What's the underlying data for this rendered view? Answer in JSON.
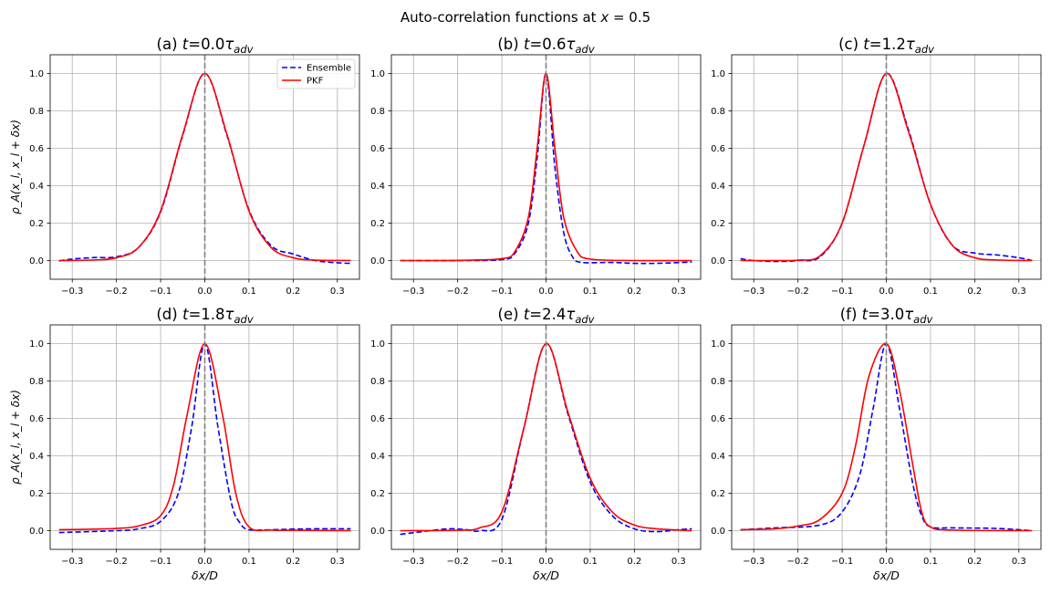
{
  "figure": {
    "suptitle_prefix": "Auto-correlation functions at ",
    "suptitle_math": "x",
    "suptitle_suffix": " = 0.5"
  },
  "legend": {
    "ensemble_label": "Ensemble",
    "pkf_label": "PKF",
    "placement": "upper-right of panel (a)"
  },
  "colors": {
    "ensemble": "#0000ff",
    "pkf": "#ff0000",
    "vline": "#808080",
    "grid": "#b0b0b0"
  },
  "chart_data": [
    {
      "type": "line",
      "panel": "(a)",
      "title_prefix": "(a) ",
      "time": "0.0",
      "xlim": [
        -0.35,
        0.35
      ],
      "ylim": [
        -0.1,
        1.1
      ],
      "xticks": [
        -0.3,
        -0.2,
        -0.1,
        0.0,
        0.1,
        0.2,
        0.3
      ],
      "yticks": [
        0.0,
        0.2,
        0.4,
        0.6,
        0.8,
        1.0
      ],
      "grid": true,
      "vline_x": 0.0,
      "ylabel": "ρ_A(x_l, x_l + δx)",
      "xlabel": "",
      "series": [
        {
          "name": "Ensemble",
          "style": "dashed",
          "points": [
            [
              -0.33,
              -0.002
            ],
            [
              -0.3,
              0.008
            ],
            [
              -0.25,
              0.016
            ],
            [
              -0.2,
              0.02
            ],
            [
              -0.15,
              0.07
            ],
            [
              -0.1,
              0.26
            ],
            [
              -0.05,
              0.67
            ],
            [
              0.0,
              1.0
            ],
            [
              0.05,
              0.67
            ],
            [
              0.1,
              0.27
            ],
            [
              0.15,
              0.08
            ],
            [
              0.2,
              0.035
            ],
            [
              0.25,
              0.0
            ],
            [
              0.3,
              -0.012
            ],
            [
              0.33,
              -0.015
            ]
          ]
        },
        {
          "name": "PKF",
          "style": "solid",
          "points": [
            [
              -0.33,
              0.0
            ],
            [
              -0.25,
              0.003
            ],
            [
              -0.2,
              0.015
            ],
            [
              -0.15,
              0.07
            ],
            [
              -0.1,
              0.265
            ],
            [
              -0.05,
              0.675
            ],
            [
              0.0,
              1.0
            ],
            [
              0.05,
              0.675
            ],
            [
              0.1,
              0.265
            ],
            [
              0.15,
              0.07
            ],
            [
              0.2,
              0.015
            ],
            [
              0.25,
              0.002
            ],
            [
              0.33,
              0.0
            ]
          ]
        }
      ]
    },
    {
      "type": "line",
      "panel": "(b)",
      "title_prefix": "(b) ",
      "time": "0.6",
      "xlim": [
        -0.35,
        0.35
      ],
      "ylim": [
        -0.1,
        1.1
      ],
      "xticks": [
        -0.3,
        -0.2,
        -0.1,
        0.0,
        0.1,
        0.2,
        0.3
      ],
      "yticks": [
        0.0,
        0.2,
        0.4,
        0.6,
        0.8,
        1.0
      ],
      "grid": true,
      "vline_x": 0.0,
      "ylabel": "",
      "xlabel": "",
      "series": [
        {
          "name": "Ensemble",
          "style": "dashed",
          "points": [
            [
              -0.33,
              0.0
            ],
            [
              -0.2,
              0.0
            ],
            [
              -0.1,
              0.005
            ],
            [
              -0.07,
              0.04
            ],
            [
              -0.04,
              0.2
            ],
            [
              -0.02,
              0.55
            ],
            [
              0.0,
              1.0
            ],
            [
              0.02,
              0.5
            ],
            [
              0.04,
              0.15
            ],
            [
              0.06,
              0.02
            ],
            [
              0.08,
              -0.01
            ],
            [
              0.15,
              -0.01
            ],
            [
              0.2,
              -0.015
            ],
            [
              0.25,
              -0.015
            ],
            [
              0.33,
              -0.008
            ]
          ]
        },
        {
          "name": "PKF",
          "style": "solid",
          "points": [
            [
              -0.33,
              0.0
            ],
            [
              -0.2,
              0.001
            ],
            [
              -0.1,
              0.01
            ],
            [
              -0.07,
              0.05
            ],
            [
              -0.04,
              0.23
            ],
            [
              -0.02,
              0.6
            ],
            [
              0.0,
              1.0
            ],
            [
              0.02,
              0.6
            ],
            [
              0.04,
              0.23
            ],
            [
              0.07,
              0.05
            ],
            [
              0.1,
              0.008
            ],
            [
              0.2,
              0.0
            ],
            [
              0.33,
              0.0
            ]
          ]
        }
      ]
    },
    {
      "type": "line",
      "panel": "(c)",
      "title_prefix": "(c) ",
      "time": "1.2",
      "xlim": [
        -0.35,
        0.35
      ],
      "ylim": [
        -0.1,
        1.1
      ],
      "xticks": [
        -0.3,
        -0.2,
        -0.1,
        0.0,
        0.1,
        0.2,
        0.3
      ],
      "yticks": [
        0.0,
        0.2,
        0.4,
        0.6,
        0.8,
        1.0
      ],
      "grid": true,
      "vline_x": 0.0,
      "ylabel": "",
      "xlabel": "",
      "series": [
        {
          "name": "Ensemble",
          "style": "dashed",
          "points": [
            [
              -0.33,
              0.01
            ],
            [
              -0.3,
              0.0
            ],
            [
              -0.25,
              -0.005
            ],
            [
              -0.2,
              0.0
            ],
            [
              -0.15,
              0.02
            ],
            [
              -0.1,
              0.2
            ],
            [
              -0.05,
              0.62
            ],
            [
              0.0,
              1.0
            ],
            [
              0.05,
              0.7
            ],
            [
              0.1,
              0.3
            ],
            [
              0.15,
              0.08
            ],
            [
              0.2,
              0.04
            ],
            [
              0.25,
              0.03
            ],
            [
              0.3,
              0.015
            ],
            [
              0.33,
              0.0
            ]
          ]
        },
        {
          "name": "PKF",
          "style": "solid",
          "points": [
            [
              -0.33,
              0.0
            ],
            [
              -0.25,
              0.0
            ],
            [
              -0.2,
              0.002
            ],
            [
              -0.15,
              0.025
            ],
            [
              -0.1,
              0.2
            ],
            [
              -0.05,
              0.62
            ],
            [
              0.0,
              1.0
            ],
            [
              0.05,
              0.69
            ],
            [
              0.1,
              0.3
            ],
            [
              0.15,
              0.08
            ],
            [
              0.2,
              0.015
            ],
            [
              0.25,
              0.003
            ],
            [
              0.33,
              0.0
            ]
          ]
        }
      ]
    },
    {
      "type": "line",
      "panel": "(d)",
      "title_prefix": "(d) ",
      "time": "1.8",
      "xlim": [
        -0.35,
        0.35
      ],
      "ylim": [
        -0.1,
        1.1
      ],
      "xticks": [
        -0.3,
        -0.2,
        -0.1,
        0.0,
        0.1,
        0.2,
        0.3
      ],
      "yticks": [
        0.0,
        0.2,
        0.4,
        0.6,
        0.8,
        1.0
      ],
      "grid": true,
      "vline_x": 0.0,
      "ylabel": "ρ_A(x_l, x_l + δx)",
      "xlabel": "δx/D",
      "series": [
        {
          "name": "Ensemble",
          "style": "dashed",
          "points": [
            [
              -0.33,
              -0.01
            ],
            [
              -0.2,
              0.0
            ],
            [
              -0.15,
              0.01
            ],
            [
              -0.1,
              0.05
            ],
            [
              -0.06,
              0.2
            ],
            [
              -0.03,
              0.55
            ],
            [
              0.0,
              1.0
            ],
            [
              0.03,
              0.55
            ],
            [
              0.06,
              0.15
            ],
            [
              0.08,
              0.04
            ],
            [
              0.1,
              0.005
            ],
            [
              0.15,
              0.005
            ],
            [
              0.2,
              0.008
            ],
            [
              0.25,
              0.01
            ],
            [
              0.33,
              0.01
            ]
          ]
        },
        {
          "name": "PKF",
          "style": "solid",
          "points": [
            [
              -0.33,
              0.005
            ],
            [
              -0.25,
              0.008
            ],
            [
              -0.2,
              0.012
            ],
            [
              -0.15,
              0.025
            ],
            [
              -0.1,
              0.08
            ],
            [
              -0.07,
              0.25
            ],
            [
              -0.04,
              0.62
            ],
            [
              0.0,
              1.0
            ],
            [
              0.04,
              0.62
            ],
            [
              0.07,
              0.2
            ],
            [
              0.1,
              0.02
            ],
            [
              0.15,
              0.003
            ],
            [
              0.2,
              0.002
            ],
            [
              0.33,
              0.0
            ]
          ]
        }
      ]
    },
    {
      "type": "line",
      "panel": "(e)",
      "title_prefix": "(e) ",
      "time": "2.4",
      "xlim": [
        -0.35,
        0.35
      ],
      "ylim": [
        -0.1,
        1.1
      ],
      "xticks": [
        -0.3,
        -0.2,
        -0.1,
        0.0,
        0.1,
        0.2,
        0.3
      ],
      "yticks": [
        0.0,
        0.2,
        0.4,
        0.6,
        0.8,
        1.0
      ],
      "grid": true,
      "vline_x": 0.0,
      "ylabel": "",
      "xlabel": "δx/D",
      "series": [
        {
          "name": "Ensemble",
          "style": "dashed",
          "points": [
            [
              -0.33,
              -0.02
            ],
            [
              -0.28,
              -0.005
            ],
            [
              -0.22,
              0.01
            ],
            [
              -0.18,
              0.005
            ],
            [
              -0.15,
              0.0
            ],
            [
              -0.1,
              0.06
            ],
            [
              -0.05,
              0.55
            ],
            [
              0.0,
              1.0
            ],
            [
              0.05,
              0.62
            ],
            [
              0.1,
              0.26
            ],
            [
              0.15,
              0.08
            ],
            [
              0.2,
              0.01
            ],
            [
              0.25,
              -0.005
            ],
            [
              0.3,
              0.005
            ],
            [
              0.33,
              0.01
            ]
          ]
        },
        {
          "name": "PKF",
          "style": "solid",
          "points": [
            [
              -0.33,
              0.0
            ],
            [
              -0.2,
              0.002
            ],
            [
              -0.15,
              0.015
            ],
            [
              -0.1,
              0.1
            ],
            [
              -0.05,
              0.55
            ],
            [
              0.0,
              1.0
            ],
            [
              0.05,
              0.63
            ],
            [
              0.1,
              0.28
            ],
            [
              0.15,
              0.1
            ],
            [
              0.2,
              0.03
            ],
            [
              0.25,
              0.01
            ],
            [
              0.33,
              0.0
            ]
          ]
        }
      ]
    },
    {
      "type": "line",
      "panel": "(f)",
      "title_prefix": "(f) ",
      "time": "3.0",
      "xlim": [
        -0.35,
        0.35
      ],
      "ylim": [
        -0.1,
        1.1
      ],
      "xticks": [
        -0.3,
        -0.2,
        -0.1,
        0.0,
        0.1,
        0.2,
        0.3
      ],
      "yticks": [
        0.0,
        0.2,
        0.4,
        0.6,
        0.8,
        1.0
      ],
      "grid": true,
      "vline_x": 0.0,
      "ylabel": "",
      "xlabel": "δx/D",
      "series": [
        {
          "name": "Ensemble",
          "style": "dashed",
          "points": [
            [
              -0.33,
              0.005
            ],
            [
              -0.25,
              0.015
            ],
            [
              -0.15,
              0.03
            ],
            [
              -0.1,
              0.1
            ],
            [
              -0.06,
              0.3
            ],
            [
              -0.03,
              0.65
            ],
            [
              0.0,
              1.0
            ],
            [
              0.03,
              0.65
            ],
            [
              0.06,
              0.25
            ],
            [
              0.08,
              0.08
            ],
            [
              0.1,
              0.02
            ],
            [
              0.15,
              0.015
            ],
            [
              0.25,
              0.012
            ],
            [
              0.33,
              0.0
            ]
          ]
        },
        {
          "name": "PKF",
          "style": "solid",
          "points": [
            [
              -0.33,
              0.005
            ],
            [
              -0.25,
              0.01
            ],
            [
              -0.2,
              0.025
            ],
            [
              -0.15,
              0.06
            ],
            [
              -0.1,
              0.2
            ],
            [
              -0.07,
              0.45
            ],
            [
              -0.04,
              0.82
            ],
            [
              0.0,
              1.0
            ],
            [
              0.03,
              0.75
            ],
            [
              0.06,
              0.35
            ],
            [
              0.08,
              0.1
            ],
            [
              0.1,
              0.02
            ],
            [
              0.15,
              0.003
            ],
            [
              0.33,
              0.0
            ]
          ]
        }
      ]
    }
  ]
}
